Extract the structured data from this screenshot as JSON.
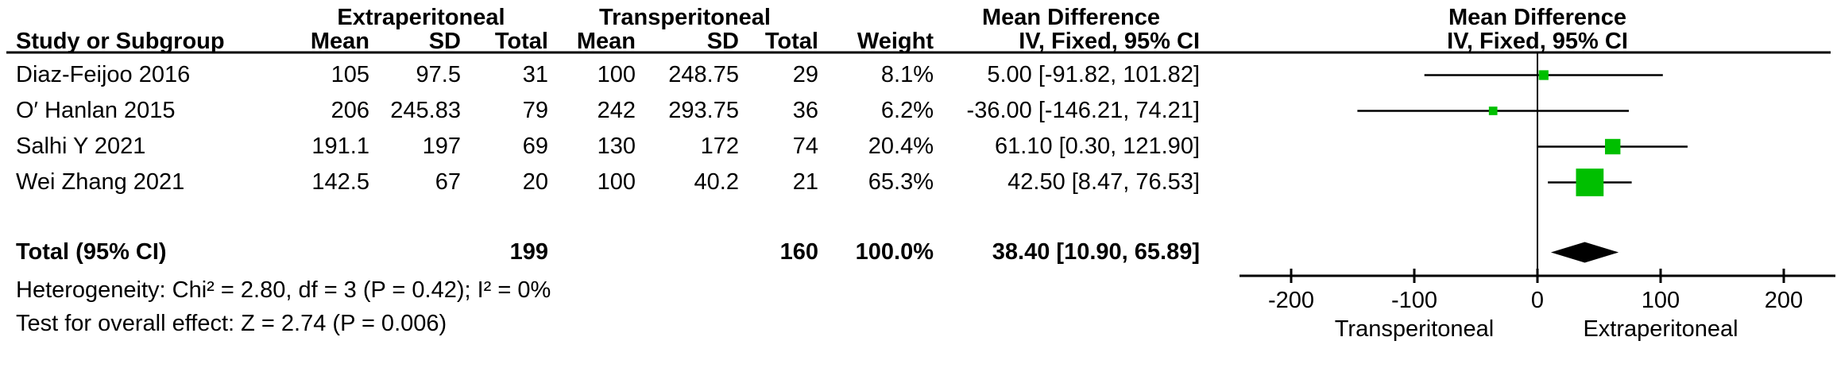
{
  "table": {
    "group_headers": {
      "experimental": "Extraperitoneal",
      "control": "Transperitoneal",
      "effect_text_col": "Mean Difference",
      "effect_plot_col": "Mean Difference"
    },
    "col_headers": {
      "study": "Study or Subgroup",
      "mean": "Mean",
      "sd": "SD",
      "total": "Total",
      "weight": "Weight",
      "ci": "IV, Fixed, 95% CI",
      "ci_plot": "IV, Fixed, 95% CI"
    },
    "rows": [
      {
        "study": "Diaz-Feijoo 2016",
        "mean1": "105",
        "sd1": "97.5",
        "total1": "31",
        "mean2": "100",
        "sd2": "248.75",
        "total2": "29",
        "weight": "8.1%",
        "ci": "5.00 [-91.82, 101.82]"
      },
      {
        "study": "O′ Hanlan 2015",
        "mean1": "206",
        "sd1": "245.83",
        "total1": "79",
        "mean2": "242",
        "sd2": "293.75",
        "total2": "36",
        "weight": "6.2%",
        "ci": "-36.00 [-146.21, 74.21]"
      },
      {
        "study": "Salhi Y 2021",
        "mean1": "191.1",
        "sd1": "197",
        "total1": "69",
        "mean2": "130",
        "sd2": "172",
        "total2": "74",
        "weight": "20.4%",
        "ci": "61.10 [0.30, 121.90]"
      },
      {
        "study": "Wei Zhang 2021",
        "mean1": "142.5",
        "sd1": "67",
        "total1": "20",
        "mean2": "100",
        "sd2": "40.2",
        "total2": "21",
        "weight": "65.3%",
        "ci": "42.50 [8.47, 76.53]"
      }
    ],
    "total_row": {
      "study": "Total (95% CI)",
      "total1": "199",
      "total2": "160",
      "weight": "100.0%",
      "ci": "38.40 [10.90, 65.89]"
    },
    "footer": {
      "heterogeneity": "Heterogeneity: Chi² = 2.80, df = 3 (P = 0.42); I² = 0%",
      "overall_effect": "Test for overall effect: Z = 2.74 (P = 0.006)"
    }
  },
  "chart_data": {
    "type": "forest",
    "title": "Mean Difference, IV, Fixed, 95% CI",
    "x_axis": {
      "ticks": [
        -200,
        -100,
        0,
        100,
        200
      ],
      "range": [
        -250,
        240
      ],
      "left_direction_label": "Transperitoneal",
      "right_direction_label": "Extraperitoneal"
    },
    "studies": [
      {
        "label": "Diaz-Feijoo 2016",
        "md": 5.0,
        "ci_low": -91.82,
        "ci_high": 101.82,
        "weight_pct": 8.1
      },
      {
        "label": "O′ Hanlan 2015",
        "md": -36.0,
        "ci_low": -146.21,
        "ci_high": 74.21,
        "weight_pct": 6.2
      },
      {
        "label": "Salhi Y 2021",
        "md": 61.1,
        "ci_low": 0.3,
        "ci_high": 121.9,
        "weight_pct": 20.4
      },
      {
        "label": "Wei Zhang 2021",
        "md": 42.5,
        "ci_low": 8.47,
        "ci_high": 76.53,
        "weight_pct": 65.3
      }
    ],
    "total": {
      "label": "Total (95% CI)",
      "md": 38.4,
      "ci_low": 10.9,
      "ci_high": 65.89,
      "weight_pct": 100.0
    },
    "legend": "square size proportional to weight; diamond = pooled estimate"
  },
  "colors": {
    "square": "#00bf00",
    "diamond": "#000000",
    "line": "#000000",
    "text": "#000000"
  }
}
